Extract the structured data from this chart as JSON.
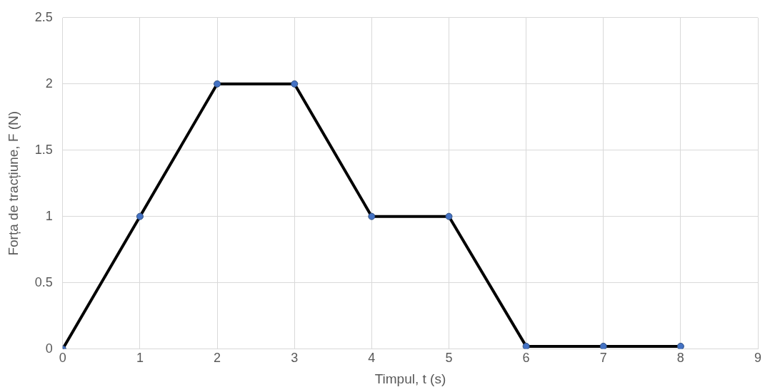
{
  "chart_data": {
    "type": "line",
    "xlabel": "Timpul, t (s)",
    "ylabel": "Forța de tracțiune, F (N)",
    "x": [
      0,
      1,
      2,
      3,
      4,
      5,
      6,
      7,
      8
    ],
    "series": [
      {
        "color": "#000000",
        "values": [
          0,
          1,
          2,
          2,
          1,
          1,
          0.02,
          0.02,
          0.02
        ]
      }
    ],
    "xlim": [
      0,
      9
    ],
    "xticks": [
      0,
      1,
      2,
      3,
      4,
      5,
      6,
      7,
      8,
      9
    ],
    "ylim": [
      0,
      2.5
    ],
    "yticks": [
      0,
      0.5,
      1,
      1.5,
      2,
      2.5
    ],
    "grid": true,
    "legend": false,
    "marker": "circle",
    "line_style": "solid"
  }
}
